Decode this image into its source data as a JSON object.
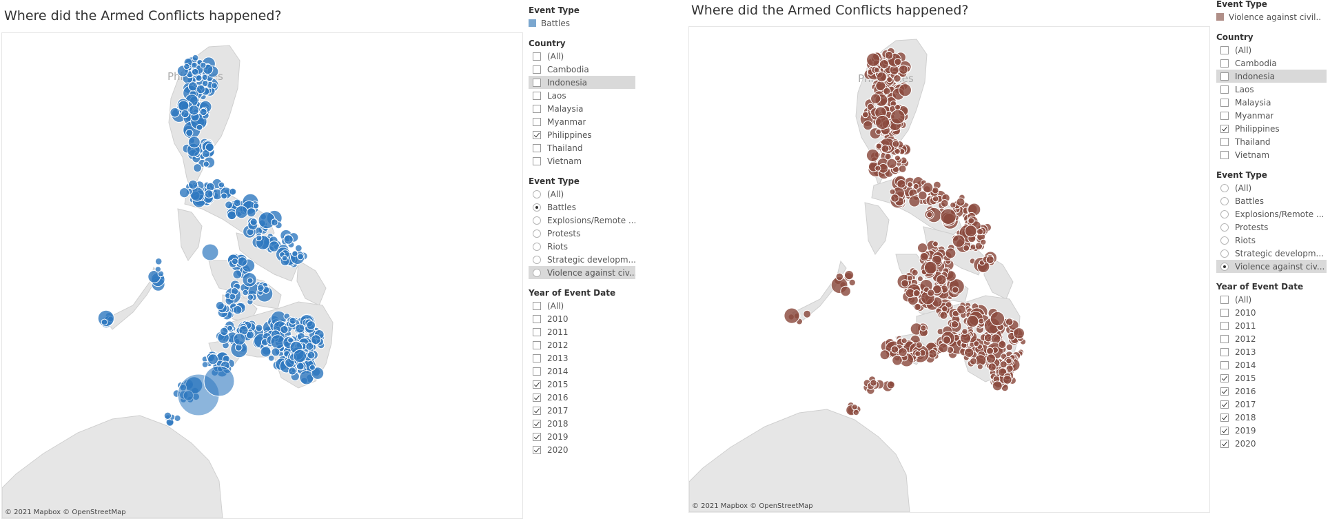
{
  "dashboards": [
    {
      "title": "Where did the Armed Conflicts happened?",
      "legend": {
        "title": "Event Type",
        "value": "Battles",
        "color": "#7ba7cf"
      },
      "marker": {
        "fill": "#2e78bf",
        "stroke": "#ffffff",
        "opacity": 0.8
      },
      "country": {
        "title": "Country",
        "options": [
          {
            "label": "(All)",
            "checked": false
          },
          {
            "label": "Cambodia",
            "checked": false
          },
          {
            "label": "Indonesia",
            "checked": false
          },
          {
            "label": "Laos",
            "checked": false
          },
          {
            "label": "Malaysia",
            "checked": false
          },
          {
            "label": "Myanmar",
            "checked": false
          },
          {
            "label": "Philippines",
            "checked": true
          },
          {
            "label": "Thailand",
            "checked": false
          },
          {
            "label": "Vietnam",
            "checked": false
          }
        ]
      },
      "event_type": {
        "title": "Event Type",
        "options": [
          {
            "label": "(All)",
            "selected": false
          },
          {
            "label": "Battles",
            "selected": true
          },
          {
            "label": "Explosions/Remote ...",
            "selected": false
          },
          {
            "label": "Protests",
            "selected": false
          },
          {
            "label": "Riots",
            "selected": false
          },
          {
            "label": "Strategic developm...",
            "selected": false
          },
          {
            "label": "Violence against civ...",
            "selected": false
          }
        ]
      },
      "year": {
        "title": "Year of Event Date",
        "options": [
          {
            "label": "(All)",
            "checked": false
          },
          {
            "label": "2010",
            "checked": false
          },
          {
            "label": "2011",
            "checked": false
          },
          {
            "label": "2012",
            "checked": false
          },
          {
            "label": "2013",
            "checked": false
          },
          {
            "label": "2014",
            "checked": false
          },
          {
            "label": "2015",
            "checked": true
          },
          {
            "label": "2016",
            "checked": true
          },
          {
            "label": "2017",
            "checked": true
          },
          {
            "label": "2018",
            "checked": true
          },
          {
            "label": "2019",
            "checked": true
          },
          {
            "label": "2020",
            "checked": true
          }
        ]
      },
      "copyright": "© 2021 Mapbox © OpenStreetMap",
      "map_label": "Philippines"
    },
    {
      "title": "Where did the Armed Conflicts happened?",
      "legend": {
        "title": "Event Type",
        "value": "Violence against civil..",
        "color": "#b08f88"
      },
      "marker": {
        "fill": "#8b4a3e",
        "stroke": "#ffffff",
        "opacity": 0.82
      },
      "country": {
        "title": "Country",
        "options": [
          {
            "label": "(All)",
            "checked": false
          },
          {
            "label": "Cambodia",
            "checked": false
          },
          {
            "label": "Indonesia",
            "checked": false
          },
          {
            "label": "Laos",
            "checked": false
          },
          {
            "label": "Malaysia",
            "checked": false
          },
          {
            "label": "Myanmar",
            "checked": false
          },
          {
            "label": "Philippines",
            "checked": true
          },
          {
            "label": "Thailand",
            "checked": false
          },
          {
            "label": "Vietnam",
            "checked": false
          }
        ]
      },
      "event_type": {
        "title": "Event Type",
        "options": [
          {
            "label": "(All)",
            "selected": false
          },
          {
            "label": "Battles",
            "selected": false
          },
          {
            "label": "Explosions/Remote ...",
            "selected": false
          },
          {
            "label": "Protests",
            "selected": false
          },
          {
            "label": "Riots",
            "selected": false
          },
          {
            "label": "Strategic developm...",
            "selected": false
          },
          {
            "label": "Violence against civ...",
            "selected": true
          }
        ]
      },
      "year": {
        "title": "Year of Event Date",
        "options": [
          {
            "label": "(All)",
            "checked": false
          },
          {
            "label": "2010",
            "checked": false
          },
          {
            "label": "2011",
            "checked": false
          },
          {
            "label": "2012",
            "checked": false
          },
          {
            "label": "2013",
            "checked": false
          },
          {
            "label": "2014",
            "checked": false
          },
          {
            "label": "2015",
            "checked": true
          },
          {
            "label": "2016",
            "checked": true
          },
          {
            "label": "2017",
            "checked": true
          },
          {
            "label": "2018",
            "checked": true
          },
          {
            "label": "2019",
            "checked": true
          },
          {
            "label": "2020",
            "checked": true
          }
        ]
      },
      "copyright": "© 2021 Mapbox © OpenStreetMap",
      "map_label": "Philippines"
    }
  ]
}
